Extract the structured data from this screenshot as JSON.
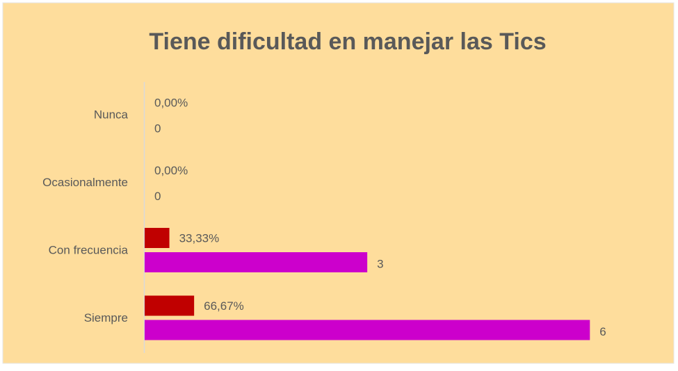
{
  "chart_data": {
    "type": "bar",
    "orientation": "horizontal",
    "title": "Tiene dificultad en manejar las Tics",
    "categories": [
      "Nunca",
      "Ocasionalmente",
      "Con frecuencia",
      "Siempre"
    ],
    "series": [
      {
        "color": "#c00000",
        "values": [
          0,
          0,
          33.33,
          66.67
        ],
        "value_labels": [
          "0,00%",
          "0,00%",
          "33,33%",
          "66,67%"
        ],
        "axis": "x2"
      },
      {
        "color": "#cc00cc",
        "values": [
          0,
          0,
          3,
          6
        ]
      }
    ],
    "xlim": [
      0,
      7
    ],
    "x2lim": [
      0,
      700
    ]
  }
}
